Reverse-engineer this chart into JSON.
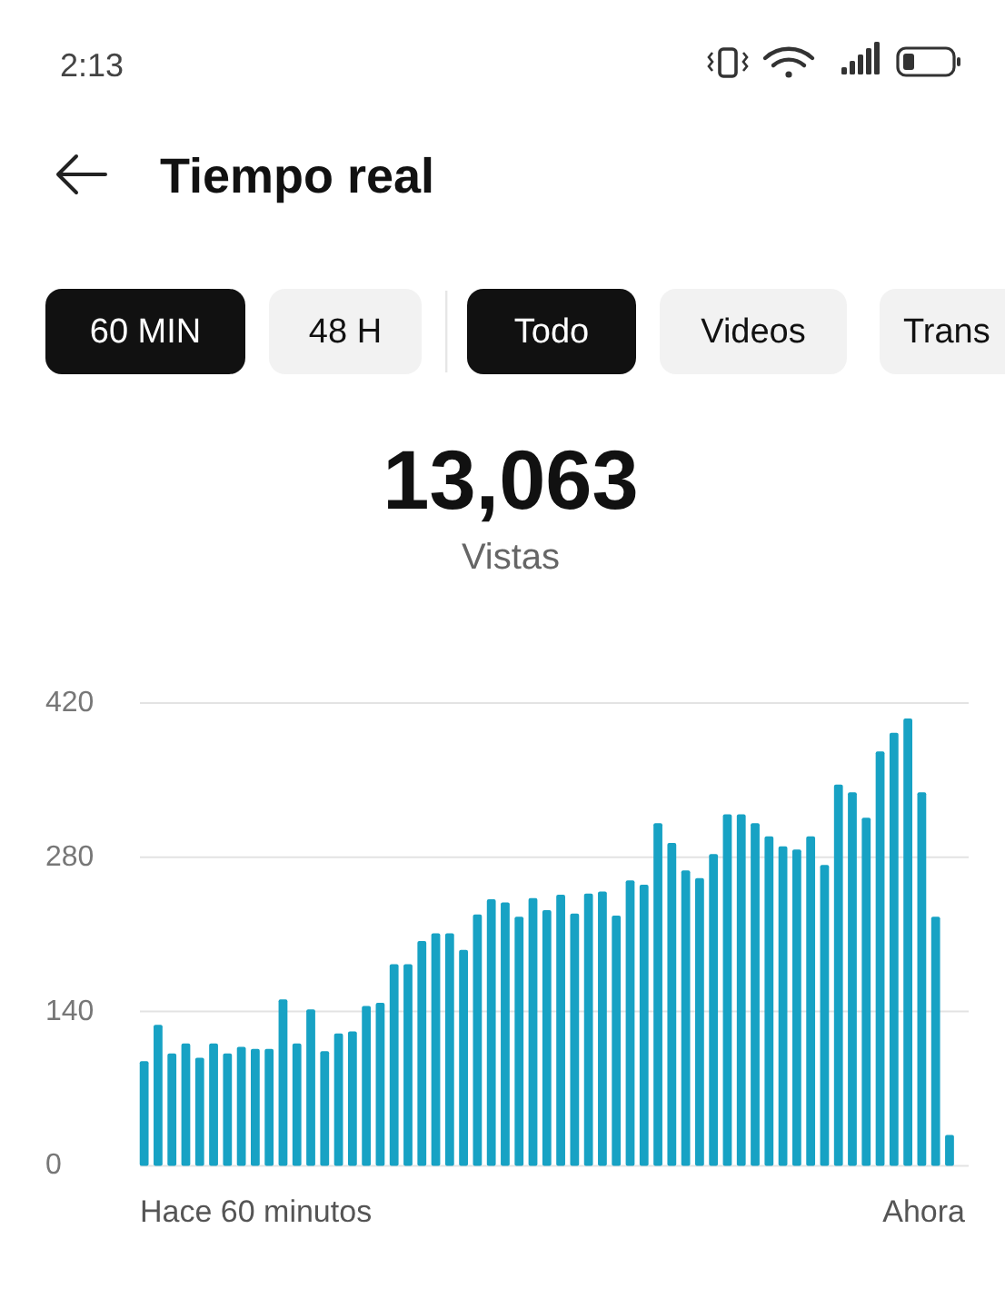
{
  "chart_data": {
    "type": "bar",
    "title": "Tiempo real",
    "annotations": [
      "2:13",
      "60 MIN",
      "48 H",
      "Todo",
      "Videos",
      "Trans",
      "13,063",
      "Vistas",
      "Hace 60 minutos",
      "Ahora"
    ],
    "categories": [
      null,
      null,
      null,
      null,
      null,
      null,
      null,
      null,
      null,
      null,
      null,
      null,
      null,
      null,
      null,
      null,
      null,
      null,
      null,
      null,
      null,
      null,
      null,
      null,
      null,
      null,
      null,
      null,
      null,
      null,
      null,
      null,
      null,
      null,
      null,
      null,
      null,
      null,
      null,
      null,
      null,
      null,
      null,
      null,
      null,
      null,
      null,
      null,
      null,
      null,
      null,
      null,
      null,
      null,
      null,
      null,
      null,
      null,
      null
    ],
    "values": [
      95,
      128,
      102,
      111,
      98,
      111,
      102,
      108,
      106,
      106,
      151,
      111,
      142,
      104,
      120,
      122,
      145,
      148,
      183,
      183,
      204,
      211,
      211,
      196,
      228,
      242,
      239,
      226,
      243,
      232,
      246,
      229,
      247,
      249,
      227,
      259,
      255,
      311,
      293,
      268,
      261,
      283,
      319,
      319,
      311,
      299,
      290,
      287,
      299,
      273,
      346,
      339,
      316,
      376,
      393,
      406,
      339,
      226,
      28
    ],
    "color": "#17a2c4",
    "ylim": [
      0,
      420
    ],
    "yticks": [
      0,
      140,
      280,
      420
    ],
    "grid": "y"
  }
}
